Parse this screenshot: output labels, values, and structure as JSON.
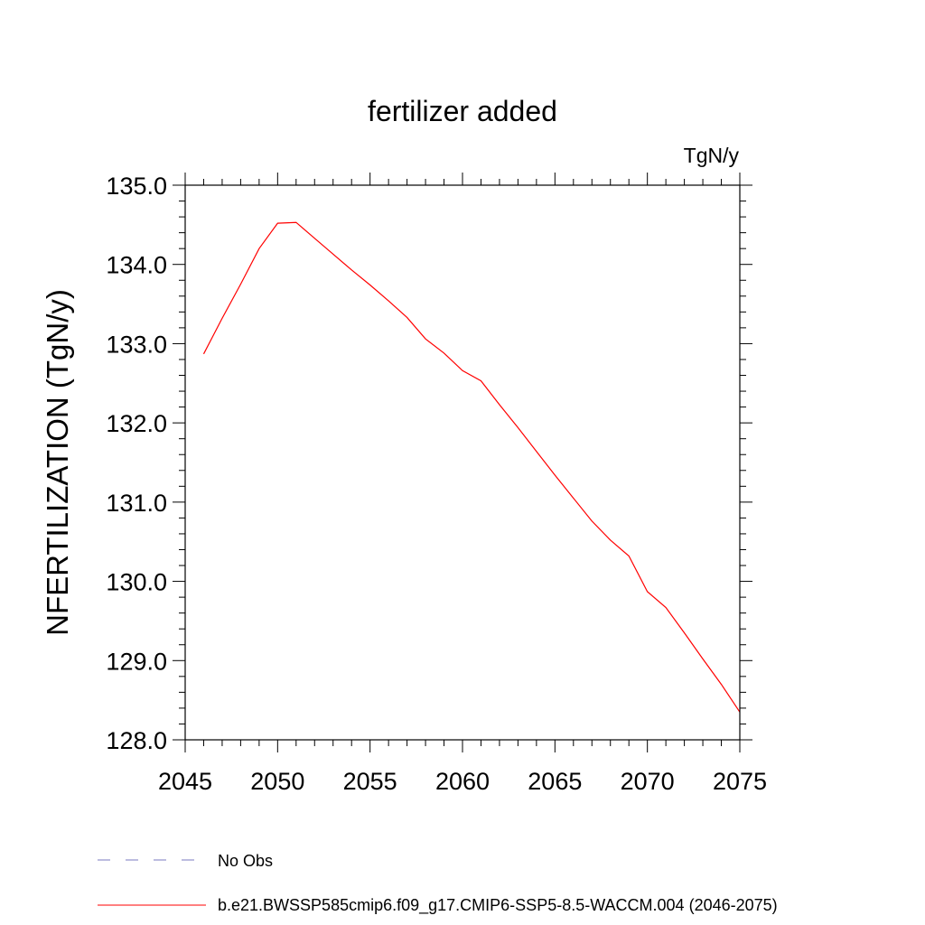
{
  "chart_data": {
    "type": "line",
    "title": "fertilizer added",
    "units_label": "TgN/y",
    "ylabel": "NFERTILIZATION  (TgN/y)",
    "xlabel": "",
    "xlim": [
      2045,
      2075
    ],
    "ylim": [
      128.0,
      135.0
    ],
    "x_ticks": [
      "2045",
      "2050",
      "2055",
      "2060",
      "2065",
      "2070",
      "2075"
    ],
    "y_ticks": [
      "128.0",
      "129.0",
      "130.0",
      "131.0",
      "132.0",
      "133.0",
      "134.0",
      "135.0"
    ],
    "grid": false,
    "series": [
      {
        "name": "b.e21.BWSSP585cmip6.f09_g17.CMIP6-SSP5-8.5-WACCM.004 (2046-2075)",
        "color": "#ff0000",
        "style": "solid",
        "x": [
          2046,
          2047,
          2048,
          2049,
          2050,
          2051,
          2052,
          2053,
          2054,
          2055,
          2056,
          2057,
          2058,
          2059,
          2060,
          2061,
          2062,
          2063,
          2064,
          2065,
          2066,
          2067,
          2068,
          2069,
          2070,
          2071,
          2072,
          2073,
          2074,
          2075
        ],
        "y": [
          132.87,
          133.32,
          133.75,
          134.2,
          134.52,
          134.53,
          134.33,
          134.13,
          133.93,
          133.74,
          133.54,
          133.33,
          133.06,
          132.88,
          132.66,
          132.53,
          132.23,
          131.94,
          131.64,
          131.34,
          131.05,
          130.76,
          130.52,
          130.32,
          129.87,
          129.67,
          129.35,
          129.02,
          128.7,
          128.35
        ]
      }
    ],
    "legend": {
      "placement": "bottom",
      "entries": [
        {
          "label": "No Obs",
          "color": "#7a78c2",
          "style": "dashed"
        },
        {
          "label": "b.e21.BWSSP585cmip6.f09_g17.CMIP6-SSP5-8.5-WACCM.004 (2046-2075)",
          "color": "#ff0000",
          "style": "solid"
        }
      ]
    }
  }
}
